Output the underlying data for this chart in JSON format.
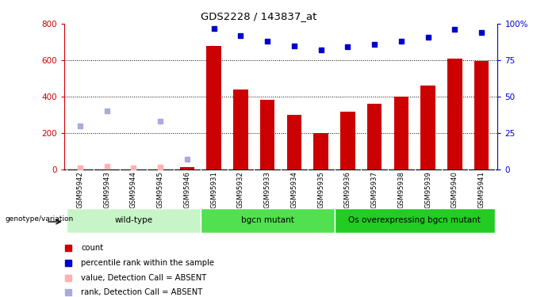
{
  "title": "GDS2228 / 143837_at",
  "samples": [
    "GSM95942",
    "GSM95943",
    "GSM95944",
    "GSM95945",
    "GSM95946",
    "GSM95931",
    "GSM95932",
    "GSM95933",
    "GSM95934",
    "GSM95935",
    "GSM95936",
    "GSM95937",
    "GSM95938",
    "GSM95939",
    "GSM95940",
    "GSM95941"
  ],
  "groups": [
    {
      "label": "wild-type",
      "color": "#c8f5c8",
      "start": 0,
      "end": 5
    },
    {
      "label": "bgcn mutant",
      "color": "#50e050",
      "start": 5,
      "end": 10
    },
    {
      "label": "Os overexpressing bgcn mutant",
      "color": "#22cc22",
      "start": 10,
      "end": 16
    }
  ],
  "red_bars": [
    null,
    null,
    null,
    null,
    10,
    680,
    440,
    380,
    300,
    200,
    315,
    360,
    400,
    460,
    610,
    595
  ],
  "blue_squares_pct": [
    null,
    null,
    null,
    null,
    null,
    97,
    92,
    88,
    85,
    82,
    84,
    86,
    88,
    91,
    96,
    94
  ],
  "pink_squares_val": [
    8,
    15,
    8,
    10,
    null,
    null,
    null,
    null,
    null,
    null,
    null,
    null,
    null,
    null,
    null,
    null
  ],
  "blue_absent_rank": [
    30,
    40,
    null,
    33,
    7,
    null,
    null,
    null,
    null,
    null,
    null,
    null,
    null,
    null,
    null,
    null
  ],
  "ylim_left": [
    0,
    800
  ],
  "ylim_right": [
    0,
    100
  ],
  "yticks_left": [
    0,
    200,
    400,
    600,
    800
  ],
  "yticks_right": [
    0,
    25,
    50,
    75,
    100
  ],
  "left_axis_color": "#cc0000",
  "right_axis_color": "#0000cc",
  "bar_color": "#cc0000",
  "blue_sq_color": "#0000cc",
  "pink_color": "#ffb0b0",
  "ltblue_color": "#aaaadd",
  "grid_vals": [
    200,
    400,
    600
  ],
  "xticklabel_bg": "#d8d8d8",
  "genotype_label": "genotype/variation"
}
